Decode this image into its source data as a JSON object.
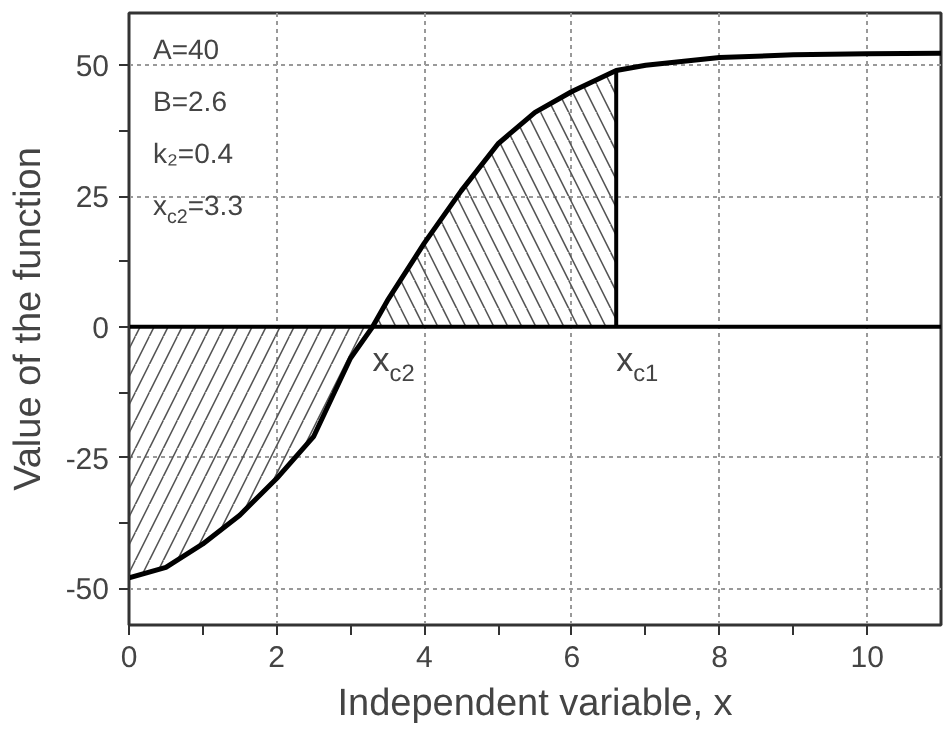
{
  "chart_data": {
    "type": "line",
    "xlabel": "Independent variable, x",
    "ylabel": "Value of the function",
    "xlim": [
      0,
      11
    ],
    "ylim": [
      -57,
      60
    ],
    "xticks": [
      0,
      {
        "value": 1,
        "label": null
      },
      2,
      {
        "value": 3,
        "label": null
      },
      4,
      {
        "value": 5,
        "label": null
      },
      6,
      {
        "value": 7,
        "label": null
      },
      8,
      {
        "value": 9,
        "label": null
      },
      10
    ],
    "yticks": [
      -50,
      {
        "value": -37.5,
        "label": null
      },
      -25,
      {
        "value": -12.5,
        "label": null
      },
      0,
      {
        "value": 12.5,
        "label": null
      },
      25,
      {
        "value": 37.5,
        "label": null
      },
      50
    ],
    "grid": true,
    "line_style": "solid",
    "marker": "none",
    "series": [
      {
        "type": "area",
        "color": "#555555",
        "x": [
          0,
          0.5,
          1,
          1.5,
          2,
          2.5,
          3,
          3.3
        ],
        "values": [
          -48,
          -46,
          -41.5,
          -36,
          -29,
          -21,
          -6,
          0
        ]
      },
      {
        "type": "area",
        "color": "#555555",
        "x": [
          3.3,
          3.5,
          4,
          4.5,
          5,
          5.5,
          6,
          6.6
        ],
        "values": [
          0,
          5,
          16,
          26,
          35,
          41,
          45,
          49
        ]
      },
      {
        "color": "#000000",
        "x": [
          0,
          0.5,
          1,
          1.5,
          2,
          2.5,
          3,
          3.3,
          3.5,
          4,
          4.5,
          5,
          5.5,
          6,
          6.6,
          7,
          8,
          9,
          10,
          11
        ],
        "values": [
          -48,
          -46,
          -41.5,
          -36,
          -29,
          -21,
          -6,
          0,
          5,
          16,
          26,
          35,
          41,
          45,
          49,
          50,
          51.5,
          52,
          52.2,
          52.3
        ]
      }
    ],
    "ref_lines": [
      {
        "axis": "y",
        "value": 0,
        "color": "#000000",
        "line_style": "solid"
      }
    ],
    "annotations": [
      "A=40",
      "B=2.6",
      "k₂=0.4",
      "x$_{c2}$=3.3",
      {
        "text": "x$_{c2}$",
        "x": 3.3,
        "y": 0
      },
      {
        "text": "x$_{c1}$",
        "x": 6.6,
        "y": 0
      }
    ]
  }
}
